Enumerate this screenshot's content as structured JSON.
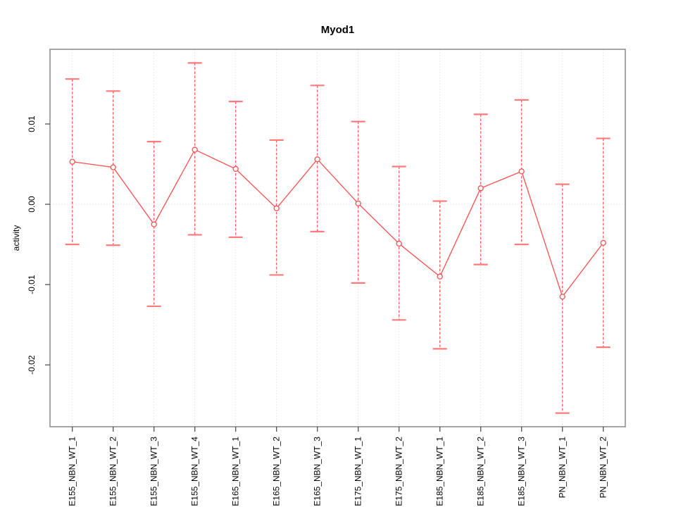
{
  "figure": {
    "background": "#FFFFFF"
  },
  "chart_data": {
    "type": "line",
    "subtype": "points-with-error-bars",
    "title": "Myod1",
    "xlabel": "",
    "ylabel": "activity",
    "legend": "none",
    "point_style": "open-circle",
    "categories": [
      "E155_NBN_WT_1",
      "E155_NBN_WT_2",
      "E155_NBN_WT_3",
      "E155_NBN_WT_4",
      "E165_NBN_WT_1",
      "E165_NBN_WT_2",
      "E165_NBN_WT_3",
      "E175_NBN_WT_1",
      "E175_NBN_WT_2",
      "E185_NBN_WT_1",
      "E185_NBN_WT_2",
      "E185_NBN_WT_3",
      "PN_NBN_WT_1",
      "PN_NBN_WT_2"
    ],
    "series": [
      {
        "name": "activity",
        "values": [
          0.0053,
          0.0046,
          -0.0025,
          0.0068,
          0.0044,
          -0.0005,
          0.0056,
          0.0001,
          -0.0049,
          -0.009,
          0.002,
          0.0041,
          -0.0115,
          -0.0048
        ]
      }
    ],
    "error_bars": {
      "upper": [
        0.0156,
        0.0141,
        0.0078,
        0.0176,
        0.0128,
        0.008,
        0.0148,
        0.0103,
        0.0047,
        0.0004,
        0.0112,
        0.013,
        0.0025,
        0.0082
      ],
      "lower": [
        -0.005,
        -0.0051,
        -0.0127,
        -0.0038,
        -0.0041,
        -0.0088,
        -0.0034,
        -0.0098,
        -0.0144,
        -0.018,
        -0.0075,
        -0.005,
        -0.026,
        -0.0178
      ]
    },
    "yticks": {
      "values": [
        0.01,
        0.0,
        -0.01,
        -0.02
      ],
      "labels": [
        "0.01",
        "0.00",
        "-0.01",
        "-0.02"
      ]
    },
    "ylim": [
      -0.0277,
      0.0193
    ],
    "grid": {
      "vertical_dotted_per_category": true,
      "horizontal_dotted_at_zero": true
    },
    "colors": {
      "series": "#FF4D4D",
      "whisker_stem": "#FF5555",
      "whisker_cap": "#FF7A7A",
      "grid": "#E2E2E2",
      "frame": "#888888",
      "tick": "#444444",
      "text": "#000000"
    }
  }
}
